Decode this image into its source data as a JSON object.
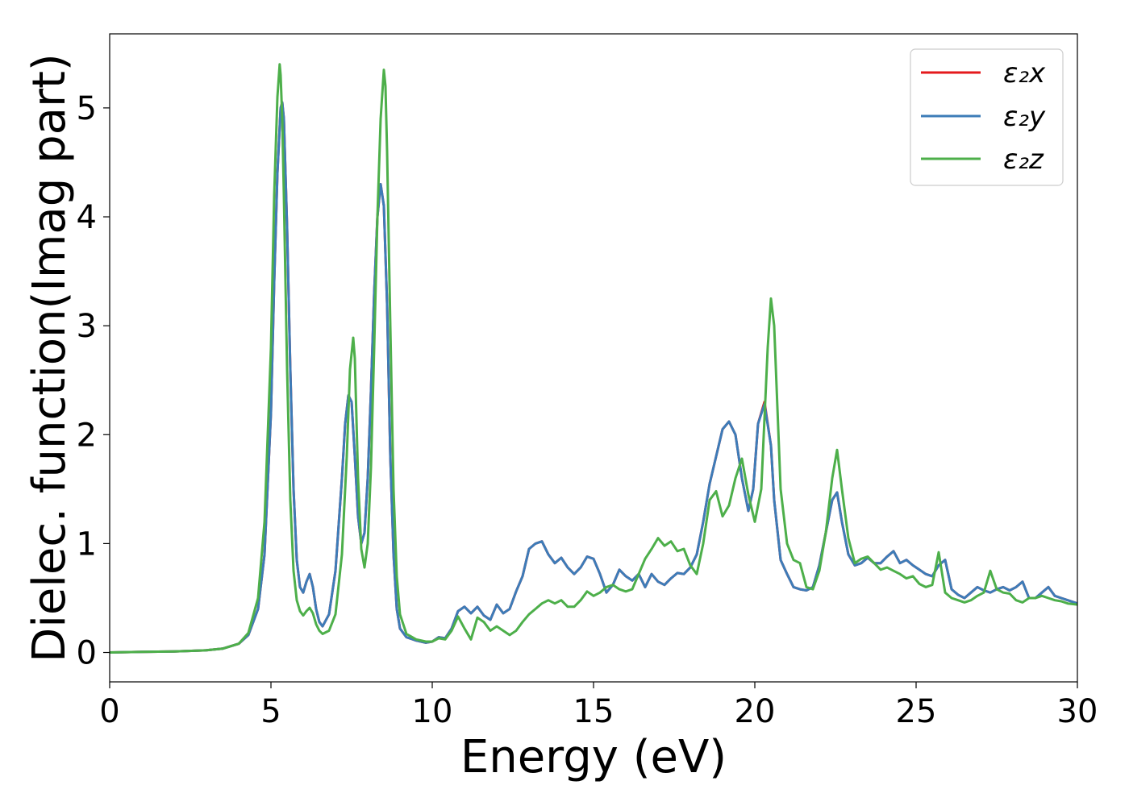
{
  "chart_data": {
    "type": "line",
    "title": "",
    "xlabel": "Energy (eV)",
    "ylabel": "Dielec. function(Imag part)",
    "xlim": [
      0,
      30
    ],
    "ylim": [
      -0.27,
      5.68
    ],
    "xticks": [
      "0",
      "5",
      "10",
      "15",
      "20",
      "25",
      "30"
    ],
    "xtick_values": [
      0,
      5,
      10,
      15,
      20,
      25,
      30
    ],
    "yticks": [
      "0",
      "1",
      "2",
      "3",
      "4",
      "5"
    ],
    "ytick_values": [
      0,
      1,
      2,
      3,
      4,
      5
    ],
    "grid": false,
    "legend_position": "top-right",
    "series": [
      {
        "name": "ε₂x",
        "color": "#e41a1c",
        "x": [
          0,
          1,
          2,
          3,
          3.5,
          4,
          4.3,
          4.6,
          4.8,
          5.0,
          5.1,
          5.2,
          5.3,
          5.35,
          5.4,
          5.5,
          5.6,
          5.7,
          5.8,
          5.9,
          6.0,
          6.1,
          6.2,
          6.3,
          6.4,
          6.5,
          6.6,
          6.8,
          7.0,
          7.2,
          7.3,
          7.4,
          7.5,
          7.6,
          7.7,
          7.8,
          7.9,
          8.0,
          8.1,
          8.2,
          8.3,
          8.4,
          8.5,
          8.6,
          8.7,
          8.8,
          8.9,
          9.0,
          9.2,
          9.5,
          9.8,
          10.0,
          10.2,
          10.4,
          10.6,
          10.8,
          11.0,
          11.2,
          11.4,
          11.6,
          11.8,
          12.0,
          12.2,
          12.4,
          12.6,
          12.8,
          13.0,
          13.2,
          13.4,
          13.6,
          13.8,
          14.0,
          14.2,
          14.4,
          14.6,
          14.8,
          15.0,
          15.2,
          15.4,
          15.6,
          15.8,
          16.0,
          16.2,
          16.4,
          16.6,
          16.8,
          17.0,
          17.2,
          17.4,
          17.6,
          17.8,
          18.0,
          18.2,
          18.4,
          18.6,
          18.8,
          19.0,
          19.2,
          19.4,
          19.6,
          19.8,
          19.95,
          20.1,
          20.3,
          20.5,
          20.6,
          20.8,
          21.0,
          21.2,
          21.4,
          21.6,
          21.8,
          22.0,
          22.2,
          22.4,
          22.55,
          22.7,
          22.9,
          23.1,
          23.3,
          23.5,
          23.7,
          23.9,
          24.1,
          24.3,
          24.5,
          24.7,
          24.9,
          25.1,
          25.3,
          25.5,
          25.7,
          25.9,
          26.1,
          26.3,
          26.5,
          26.7,
          26.9,
          27.1,
          27.3,
          27.5,
          27.7,
          27.9,
          28.1,
          28.3,
          28.5,
          28.7,
          28.9,
          29.1,
          29.3,
          29.5,
          29.7,
          30.0
        ],
        "y": [
          0,
          0.005,
          0.01,
          0.02,
          0.035,
          0.08,
          0.16,
          0.4,
          0.9,
          2.2,
          3.4,
          4.4,
          5.0,
          5.05,
          4.9,
          3.9,
          2.6,
          1.5,
          0.85,
          0.6,
          0.55,
          0.65,
          0.72,
          0.6,
          0.4,
          0.28,
          0.24,
          0.35,
          0.75,
          1.6,
          2.1,
          2.36,
          2.3,
          1.8,
          1.25,
          1.0,
          1.1,
          1.6,
          2.4,
          3.3,
          4.0,
          4.3,
          4.1,
          3.2,
          1.8,
          0.9,
          0.4,
          0.22,
          0.14,
          0.11,
          0.09,
          0.1,
          0.14,
          0.13,
          0.22,
          0.38,
          0.42,
          0.36,
          0.42,
          0.34,
          0.3,
          0.44,
          0.36,
          0.4,
          0.56,
          0.7,
          0.95,
          1.0,
          1.02,
          0.9,
          0.82,
          0.87,
          0.78,
          0.72,
          0.78,
          0.88,
          0.86,
          0.72,
          0.55,
          0.62,
          0.76,
          0.7,
          0.66,
          0.72,
          0.6,
          0.72,
          0.65,
          0.62,
          0.68,
          0.73,
          0.72,
          0.78,
          0.9,
          1.2,
          1.55,
          1.8,
          2.05,
          2.12,
          2.0,
          1.6,
          1.3,
          1.5,
          2.1,
          2.3,
          1.9,
          1.4,
          0.85,
          0.72,
          0.6,
          0.58,
          0.57,
          0.6,
          0.8,
          1.1,
          1.4,
          1.47,
          1.2,
          0.9,
          0.8,
          0.82,
          0.87,
          0.82,
          0.82,
          0.88,
          0.93,
          0.82,
          0.85,
          0.8,
          0.76,
          0.72,
          0.7,
          0.8,
          0.85,
          0.58,
          0.53,
          0.5,
          0.55,
          0.6,
          0.57,
          0.55,
          0.58,
          0.6,
          0.57,
          0.6,
          0.65,
          0.5,
          0.5,
          0.55,
          0.6,
          0.52,
          0.5,
          0.48,
          0.45
        ]
      },
      {
        "name": "ε₂y",
        "color": "#3d7cb8",
        "x": [
          0,
          1,
          2,
          3,
          3.5,
          4,
          4.3,
          4.6,
          4.8,
          5.0,
          5.1,
          5.2,
          5.3,
          5.35,
          5.4,
          5.5,
          5.6,
          5.7,
          5.8,
          5.9,
          6.0,
          6.1,
          6.2,
          6.3,
          6.4,
          6.5,
          6.6,
          6.8,
          7.0,
          7.2,
          7.3,
          7.4,
          7.5,
          7.6,
          7.7,
          7.8,
          7.9,
          8.0,
          8.1,
          8.2,
          8.3,
          8.4,
          8.5,
          8.6,
          8.7,
          8.8,
          8.9,
          9.0,
          9.2,
          9.5,
          9.8,
          10.0,
          10.2,
          10.4,
          10.6,
          10.8,
          11.0,
          11.2,
          11.4,
          11.6,
          11.8,
          12.0,
          12.2,
          12.4,
          12.6,
          12.8,
          13.0,
          13.2,
          13.4,
          13.6,
          13.8,
          14.0,
          14.2,
          14.4,
          14.6,
          14.8,
          15.0,
          15.2,
          15.4,
          15.6,
          15.8,
          16.0,
          16.2,
          16.4,
          16.6,
          16.8,
          17.0,
          17.2,
          17.4,
          17.6,
          17.8,
          18.0,
          18.2,
          18.4,
          18.6,
          18.8,
          19.0,
          19.2,
          19.4,
          19.6,
          19.8,
          19.95,
          20.1,
          20.3,
          20.5,
          20.6,
          20.8,
          21.0,
          21.2,
          21.4,
          21.6,
          21.8,
          22.0,
          22.2,
          22.4,
          22.55,
          22.7,
          22.9,
          23.1,
          23.3,
          23.5,
          23.7,
          23.9,
          24.1,
          24.3,
          24.5,
          24.7,
          24.9,
          25.1,
          25.3,
          25.5,
          25.7,
          25.9,
          26.1,
          26.3,
          26.5,
          26.7,
          26.9,
          27.1,
          27.3,
          27.5,
          27.7,
          27.9,
          28.1,
          28.3,
          28.5,
          28.7,
          28.9,
          29.1,
          29.3,
          29.5,
          29.7,
          30.0
        ],
        "y": [
          0,
          0.005,
          0.01,
          0.02,
          0.035,
          0.08,
          0.16,
          0.4,
          0.9,
          2.2,
          3.4,
          4.4,
          5.0,
          5.05,
          4.9,
          3.9,
          2.6,
          1.5,
          0.85,
          0.6,
          0.55,
          0.65,
          0.72,
          0.6,
          0.4,
          0.28,
          0.24,
          0.35,
          0.75,
          1.6,
          2.1,
          2.36,
          2.3,
          1.8,
          1.25,
          1.0,
          1.1,
          1.6,
          2.4,
          3.3,
          4.0,
          4.3,
          4.1,
          3.2,
          1.8,
          0.9,
          0.4,
          0.22,
          0.14,
          0.11,
          0.09,
          0.1,
          0.14,
          0.13,
          0.22,
          0.38,
          0.42,
          0.36,
          0.42,
          0.34,
          0.3,
          0.44,
          0.36,
          0.4,
          0.56,
          0.7,
          0.95,
          1.0,
          1.02,
          0.9,
          0.82,
          0.87,
          0.78,
          0.72,
          0.78,
          0.88,
          0.86,
          0.72,
          0.55,
          0.62,
          0.76,
          0.7,
          0.66,
          0.72,
          0.6,
          0.72,
          0.65,
          0.62,
          0.68,
          0.73,
          0.72,
          0.78,
          0.9,
          1.2,
          1.55,
          1.8,
          2.05,
          2.12,
          2.0,
          1.6,
          1.3,
          1.5,
          2.1,
          2.28,
          1.9,
          1.4,
          0.85,
          0.72,
          0.6,
          0.58,
          0.57,
          0.6,
          0.8,
          1.1,
          1.4,
          1.47,
          1.2,
          0.9,
          0.8,
          0.82,
          0.87,
          0.82,
          0.82,
          0.88,
          0.93,
          0.82,
          0.85,
          0.8,
          0.76,
          0.72,
          0.7,
          0.8,
          0.85,
          0.58,
          0.53,
          0.5,
          0.55,
          0.6,
          0.57,
          0.55,
          0.58,
          0.6,
          0.57,
          0.6,
          0.65,
          0.5,
          0.5,
          0.55,
          0.6,
          0.52,
          0.5,
          0.48,
          0.45
        ]
      },
      {
        "name": "ε₂z",
        "color": "#4daf4a",
        "x": [
          0,
          1,
          2,
          3,
          3.5,
          4,
          4.3,
          4.6,
          4.8,
          5.0,
          5.1,
          5.2,
          5.27,
          5.3,
          5.35,
          5.4,
          5.5,
          5.6,
          5.7,
          5.8,
          5.9,
          6.0,
          6.1,
          6.2,
          6.3,
          6.4,
          6.5,
          6.6,
          6.8,
          7.0,
          7.2,
          7.35,
          7.45,
          7.55,
          7.6,
          7.7,
          7.8,
          7.9,
          8.0,
          8.1,
          8.2,
          8.3,
          8.4,
          8.5,
          8.55,
          8.6,
          8.7,
          8.8,
          8.9,
          9.0,
          9.2,
          9.5,
          9.8,
          10.0,
          10.2,
          10.4,
          10.6,
          10.8,
          11.0,
          11.2,
          11.4,
          11.6,
          11.8,
          12.0,
          12.2,
          12.4,
          12.6,
          12.8,
          13.0,
          13.2,
          13.4,
          13.6,
          13.8,
          14.0,
          14.2,
          14.4,
          14.6,
          14.8,
          15.0,
          15.2,
          15.4,
          15.6,
          15.8,
          16.0,
          16.2,
          16.4,
          16.6,
          16.8,
          17.0,
          17.2,
          17.4,
          17.6,
          17.8,
          18.0,
          18.2,
          18.4,
          18.6,
          18.8,
          19.0,
          19.2,
          19.4,
          19.6,
          19.8,
          20.0,
          20.2,
          20.4,
          20.5,
          20.6,
          20.8,
          21.0,
          21.2,
          21.4,
          21.6,
          21.8,
          22.0,
          22.2,
          22.4,
          22.55,
          22.7,
          22.9,
          23.1,
          23.3,
          23.5,
          23.7,
          23.9,
          24.1,
          24.3,
          24.5,
          24.7,
          24.9,
          25.1,
          25.3,
          25.5,
          25.7,
          25.9,
          26.1,
          26.3,
          26.5,
          26.7,
          26.9,
          27.1,
          27.3,
          27.5,
          27.7,
          27.9,
          28.1,
          28.3,
          28.5,
          28.7,
          28.9,
          29.1,
          29.3,
          29.5,
          29.7,
          30.0
        ],
        "y": [
          0,
          0.005,
          0.01,
          0.02,
          0.035,
          0.08,
          0.18,
          0.5,
          1.2,
          2.8,
          4.2,
          5.1,
          5.4,
          5.3,
          4.9,
          4.2,
          2.6,
          1.4,
          0.75,
          0.48,
          0.38,
          0.34,
          0.38,
          0.41,
          0.36,
          0.26,
          0.2,
          0.17,
          0.2,
          0.35,
          0.9,
          1.8,
          2.6,
          2.89,
          2.7,
          1.6,
          0.95,
          0.78,
          1.0,
          1.7,
          2.8,
          4.0,
          4.9,
          5.35,
          5.2,
          4.6,
          3.0,
          1.5,
          0.7,
          0.35,
          0.17,
          0.12,
          0.1,
          0.1,
          0.13,
          0.12,
          0.2,
          0.33,
          0.22,
          0.12,
          0.32,
          0.28,
          0.2,
          0.24,
          0.2,
          0.16,
          0.2,
          0.28,
          0.35,
          0.4,
          0.45,
          0.48,
          0.45,
          0.48,
          0.42,
          0.42,
          0.48,
          0.56,
          0.52,
          0.55,
          0.6,
          0.62,
          0.58,
          0.56,
          0.58,
          0.72,
          0.86,
          0.95,
          1.05,
          0.98,
          1.02,
          0.93,
          0.95,
          0.8,
          0.72,
          1.0,
          1.4,
          1.48,
          1.25,
          1.35,
          1.6,
          1.78,
          1.45,
          1.2,
          1.5,
          2.8,
          3.25,
          3.0,
          1.5,
          1.0,
          0.85,
          0.82,
          0.6,
          0.58,
          0.75,
          1.1,
          1.6,
          1.86,
          1.5,
          1.05,
          0.82,
          0.86,
          0.88,
          0.82,
          0.76,
          0.78,
          0.75,
          0.72,
          0.68,
          0.7,
          0.63,
          0.6,
          0.62,
          0.92,
          0.55,
          0.5,
          0.48,
          0.46,
          0.48,
          0.52,
          0.55,
          0.75,
          0.58,
          0.55,
          0.54,
          0.48,
          0.46,
          0.5,
          0.5,
          0.52,
          0.5,
          0.48,
          0.47,
          0.45,
          0.44
        ]
      }
    ]
  }
}
